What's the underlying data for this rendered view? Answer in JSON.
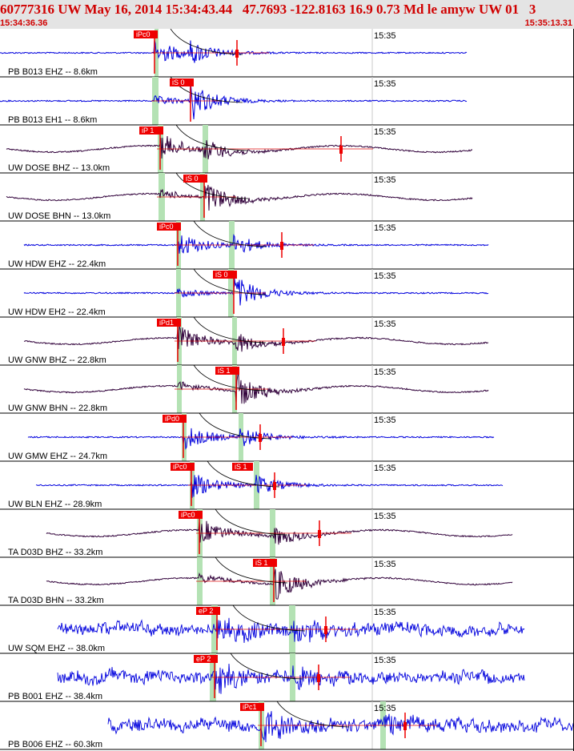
{
  "header": {
    "event_line": "60777316 UW May 16, 2014 15:34:43.44   47.7693 -122.8163 16.9 0.73 Md le amyw UW 01   3",
    "time_start": "15:34:36.36",
    "time_end": "15:35:13.31",
    "background_color": "#e4e4e4",
    "text_color": "#d00000"
  },
  "colors": {
    "trace_blue": "#0000dd",
    "trace_purple": "#30003a",
    "pick_red": "#ee0000",
    "window_green": "#b4e2b4",
    "baseline_red": "#e00000"
  },
  "channels": [
    {
      "label": "PB B013 EHZ -- 8.6km",
      "minute_label": "15:35",
      "color": "blue",
      "pick": "iPc0",
      "s_label": ""
    },
    {
      "label": "PB B013 EH1 -- 8.6km",
      "minute_label": "15:35",
      "color": "blue",
      "pick": "iS 0",
      "s_label": ""
    },
    {
      "label": "UW DOSE BHZ -- 13.0km",
      "minute_label": "15:35",
      "color": "purple",
      "pick": "iP 1",
      "s_label": ""
    },
    {
      "label": "UW DOSE BHN -- 13.0km",
      "minute_label": "15:35",
      "color": "purple",
      "pick": "iS 0",
      "s_label": ""
    },
    {
      "label": "UW HDW EHZ -- 22.4km",
      "minute_label": "15:35",
      "color": "blue",
      "pick": "iPc0",
      "s_label": ""
    },
    {
      "label": "UW HDW EH2 -- 22.4km",
      "minute_label": "15:35",
      "color": "blue",
      "pick": "iS 0",
      "s_label": ""
    },
    {
      "label": "UW GNW BHZ -- 22.8km",
      "minute_label": "15:35",
      "color": "purple",
      "pick": "iPd1",
      "s_label": ""
    },
    {
      "label": "UW GNW BHN -- 22.8km",
      "minute_label": "15:35",
      "color": "purple",
      "pick": "iS 1",
      "s_label": ""
    },
    {
      "label": "UW GMW EHZ -- 24.7km",
      "minute_label": "15:35",
      "color": "blue",
      "pick": "iPd0",
      "s_label": ""
    },
    {
      "label": "UW BLN EHZ -- 28.9km",
      "minute_label": "15:35",
      "color": "blue",
      "pick": "iPc0",
      "s_label": "iS 1"
    },
    {
      "label": "TA D03D BHZ -- 33.2km",
      "minute_label": "15:35",
      "color": "purple",
      "pick": "iPc0",
      "s_label": ""
    },
    {
      "label": "TA D03D BHN -- 33.2km",
      "minute_label": "15:35",
      "color": "purple",
      "pick": "iS 1",
      "s_label": ""
    },
    {
      "label": "UW SQM EHZ -- 38.0km",
      "minute_label": "15:35",
      "color": "blue",
      "pick": "eP 2",
      "s_label": ""
    },
    {
      "label": "PB B001 EHZ -- 38.4km",
      "minute_label": "15:35",
      "color": "blue",
      "pick": "eP 2",
      "s_label": ""
    },
    {
      "label": "PB B006 EHZ -- 60.3km",
      "minute_label": "15:35",
      "color": "blue",
      "pick": "iPc1",
      "s_label": ""
    }
  ]
}
